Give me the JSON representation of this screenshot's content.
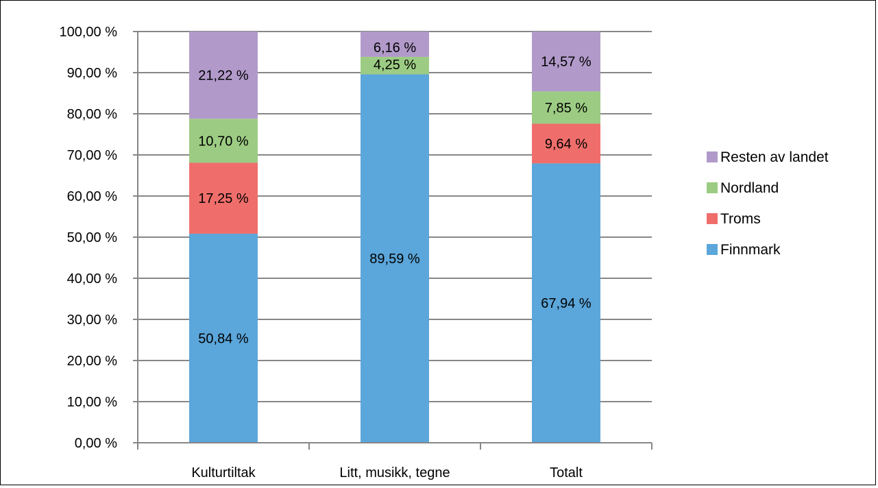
{
  "chart_data": {
    "type": "bar",
    "stacked": true,
    "normalized": true,
    "categories": [
      "Kulturtiltak",
      "Litt, musikk, tegne",
      "Totalt"
    ],
    "series": [
      {
        "name": "Finnmark",
        "color": "#5BA6DA",
        "values": [
          50.84,
          89.59,
          67.94
        ],
        "labels": [
          "50,84 %",
          "89,59 %",
          "67,94 %"
        ]
      },
      {
        "name": "Troms",
        "color": "#EF6E6B",
        "values": [
          17.25,
          0,
          9.64
        ],
        "labels": [
          "17,25 %",
          "",
          "9,64 %"
        ]
      },
      {
        "name": "Nordland",
        "color": "#9CCC83",
        "values": [
          10.7,
          4.25,
          7.85
        ],
        "labels": [
          "10,70 %",
          "4,25 %",
          "7,85 %"
        ]
      },
      {
        "name": "Resten av landet",
        "color": "#B19ACA",
        "values": [
          21.22,
          6.16,
          14.57
        ],
        "labels": [
          "21,22 %",
          "6,16 %",
          "14,57 %"
        ]
      }
    ],
    "y_ticks": [
      "0,00 %",
      "10,00 %",
      "20,00 %",
      "30,00 %",
      "40,00 %",
      "50,00 %",
      "60,00 %",
      "70,00 %",
      "80,00 %",
      "90,00 %",
      "100,00 %"
    ],
    "ylim": [
      0,
      100
    ],
    "grid": true,
    "legend_position": "right"
  }
}
